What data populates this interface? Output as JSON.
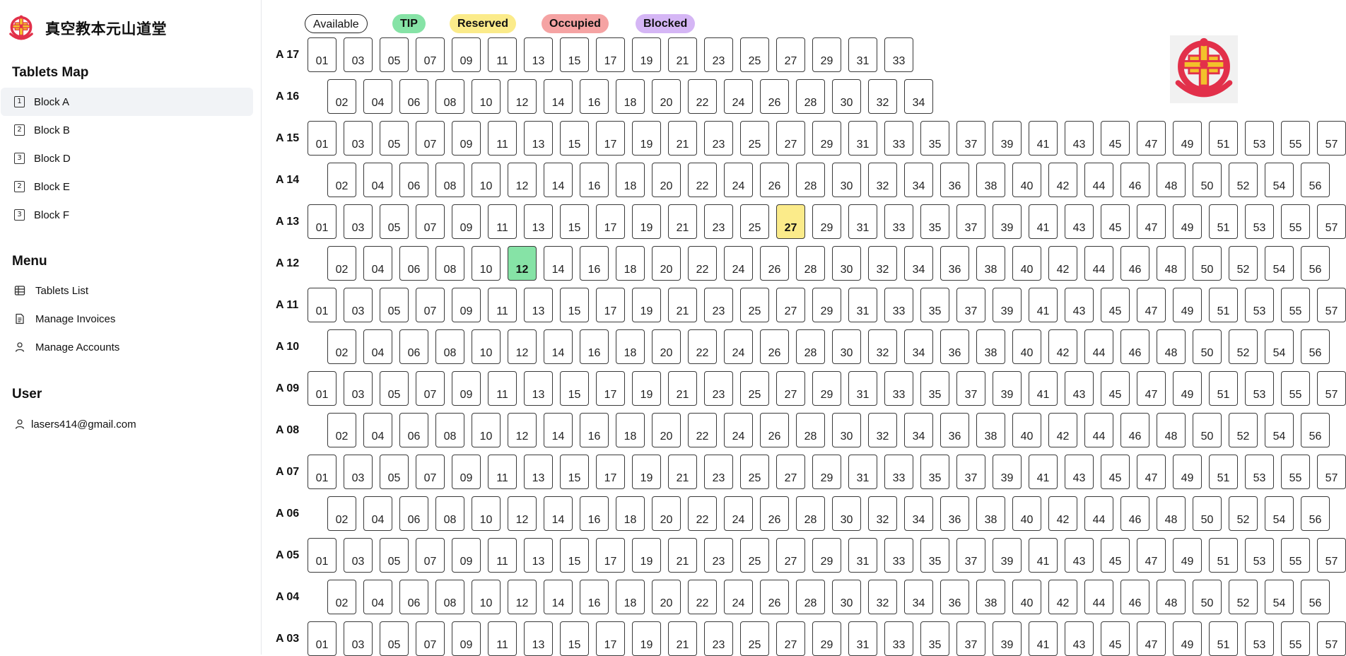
{
  "brand": {
    "name": "真空教本元山道堂"
  },
  "sidebar": {
    "tablets_map_title": "Tablets Map",
    "blocks": [
      {
        "icon_num": "1",
        "label": "Block A",
        "active": true
      },
      {
        "icon_num": "2",
        "label": "Block B",
        "active": false
      },
      {
        "icon_num": "3",
        "label": "Block D",
        "active": false
      },
      {
        "icon_num": "2",
        "label": "Block E",
        "active": false
      },
      {
        "icon_num": "3",
        "label": "Block F",
        "active": false
      }
    ],
    "menu_title": "Menu",
    "menu": [
      {
        "icon": "table-icon",
        "label": "Tablets List"
      },
      {
        "icon": "document-icon",
        "label": "Manage Invoices"
      },
      {
        "icon": "user-icon",
        "label": "Manage Accounts"
      }
    ],
    "user_title": "User",
    "user_email": "lasers414@gmail.com",
    "user_icon": "user-icon"
  },
  "legend": [
    {
      "key": "available",
      "label": "Available"
    },
    {
      "key": "tip",
      "label": "TIP"
    },
    {
      "key": "reserved",
      "label": "Reserved"
    },
    {
      "key": "occupied",
      "label": "Occupied"
    },
    {
      "key": "blocked",
      "label": "Blocked"
    }
  ],
  "status_colors": {
    "available": "#ffffff",
    "tip": "#86e3a6",
    "reserved": "#fbeb8a",
    "occupied": "#f5a3a3",
    "blocked": "#d5b6f5",
    "logo_red": "#e2304a",
    "logo_gold": "#f3c12b"
  },
  "rows": [
    {
      "label": "A 17",
      "parity": "odd",
      "cells": [
        "01",
        "03",
        "05",
        "07",
        "09",
        "11",
        "13",
        "15",
        "17",
        "19",
        "21",
        "23",
        "25",
        "27",
        "29",
        "31",
        "33"
      ]
    },
    {
      "label": "A 16",
      "parity": "even",
      "cells": [
        "02",
        "04",
        "06",
        "08",
        "10",
        "12",
        "14",
        "16",
        "18",
        "20",
        "22",
        "24",
        "26",
        "28",
        "30",
        "32",
        "34"
      ]
    },
    {
      "label": "A 15",
      "parity": "odd",
      "cells": [
        "01",
        "03",
        "05",
        "07",
        "09",
        "11",
        "13",
        "15",
        "17",
        "19",
        "21",
        "23",
        "25",
        "27",
        "29",
        "31",
        "33",
        "35",
        "37",
        "39",
        "41",
        "43",
        "45",
        "47",
        "49",
        "51",
        "53",
        "55",
        "57"
      ]
    },
    {
      "label": "A 14",
      "parity": "even",
      "cells": [
        "02",
        "04",
        "06",
        "08",
        "10",
        "12",
        "14",
        "16",
        "18",
        "20",
        "22",
        "24",
        "26",
        "28",
        "30",
        "32",
        "34",
        "36",
        "38",
        "40",
        "42",
        "44",
        "46",
        "48",
        "50",
        "52",
        "54",
        "56"
      ]
    },
    {
      "label": "A 13",
      "parity": "odd",
      "cells": [
        "01",
        "03",
        "05",
        "07",
        "09",
        "11",
        "13",
        "15",
        "17",
        "19",
        "21",
        "23",
        "25",
        "27",
        "29",
        "31",
        "33",
        "35",
        "37",
        "39",
        "41",
        "43",
        "45",
        "47",
        "49",
        "51",
        "53",
        "55",
        "57"
      ],
      "status": {
        "27": "reserved"
      }
    },
    {
      "label": "A 12",
      "parity": "even",
      "cells": [
        "02",
        "04",
        "06",
        "08",
        "10",
        "12",
        "14",
        "16",
        "18",
        "20",
        "22",
        "24",
        "26",
        "28",
        "30",
        "32",
        "34",
        "36",
        "38",
        "40",
        "42",
        "44",
        "46",
        "48",
        "50",
        "52",
        "54",
        "56"
      ],
      "status": {
        "12": "tip"
      }
    },
    {
      "label": "A 11",
      "parity": "odd",
      "cells": [
        "01",
        "03",
        "05",
        "07",
        "09",
        "11",
        "13",
        "15",
        "17",
        "19",
        "21",
        "23",
        "25",
        "27",
        "29",
        "31",
        "33",
        "35",
        "37",
        "39",
        "41",
        "43",
        "45",
        "47",
        "49",
        "51",
        "53",
        "55",
        "57"
      ]
    },
    {
      "label": "A 10",
      "parity": "even",
      "cells": [
        "02",
        "04",
        "06",
        "08",
        "10",
        "12",
        "14",
        "16",
        "18",
        "20",
        "22",
        "24",
        "26",
        "28",
        "30",
        "32",
        "34",
        "36",
        "38",
        "40",
        "42",
        "44",
        "46",
        "48",
        "50",
        "52",
        "54",
        "56"
      ]
    },
    {
      "label": "A 09",
      "parity": "odd",
      "cells": [
        "01",
        "03",
        "05",
        "07",
        "09",
        "11",
        "13",
        "15",
        "17",
        "19",
        "21",
        "23",
        "25",
        "27",
        "29",
        "31",
        "33",
        "35",
        "37",
        "39",
        "41",
        "43",
        "45",
        "47",
        "49",
        "51",
        "53",
        "55",
        "57"
      ]
    },
    {
      "label": "A 08",
      "parity": "even",
      "cells": [
        "02",
        "04",
        "06",
        "08",
        "10",
        "12",
        "14",
        "16",
        "18",
        "20",
        "22",
        "24",
        "26",
        "28",
        "30",
        "32",
        "34",
        "36",
        "38",
        "40",
        "42",
        "44",
        "46",
        "48",
        "50",
        "52",
        "54",
        "56"
      ]
    },
    {
      "label": "A 07",
      "parity": "odd",
      "cells": [
        "01",
        "03",
        "05",
        "07",
        "09",
        "11",
        "13",
        "15",
        "17",
        "19",
        "21",
        "23",
        "25",
        "27",
        "29",
        "31",
        "33",
        "35",
        "37",
        "39",
        "41",
        "43",
        "45",
        "47",
        "49",
        "51",
        "53",
        "55",
        "57"
      ]
    },
    {
      "label": "A 06",
      "parity": "even",
      "cells": [
        "02",
        "04",
        "06",
        "08",
        "10",
        "12",
        "14",
        "16",
        "18",
        "20",
        "22",
        "24",
        "26",
        "28",
        "30",
        "32",
        "34",
        "36",
        "38",
        "40",
        "42",
        "44",
        "46",
        "48",
        "50",
        "52",
        "54",
        "56"
      ]
    },
    {
      "label": "A 05",
      "parity": "odd",
      "cells": [
        "01",
        "03",
        "05",
        "07",
        "09",
        "11",
        "13",
        "15",
        "17",
        "19",
        "21",
        "23",
        "25",
        "27",
        "29",
        "31",
        "33",
        "35",
        "37",
        "39",
        "41",
        "43",
        "45",
        "47",
        "49",
        "51",
        "53",
        "55",
        "57"
      ]
    },
    {
      "label": "A 04",
      "parity": "even",
      "cells": [
        "02",
        "04",
        "06",
        "08",
        "10",
        "12",
        "14",
        "16",
        "18",
        "20",
        "22",
        "24",
        "26",
        "28",
        "30",
        "32",
        "34",
        "36",
        "38",
        "40",
        "42",
        "44",
        "46",
        "48",
        "50",
        "52",
        "54",
        "56"
      ]
    },
    {
      "label": "A 03",
      "parity": "odd",
      "cells": [
        "01",
        "03",
        "05",
        "07",
        "09",
        "11",
        "13",
        "15",
        "17",
        "19",
        "21",
        "23",
        "25",
        "27",
        "29",
        "31",
        "33",
        "35",
        "37",
        "39",
        "41",
        "43",
        "45",
        "47",
        "49",
        "51",
        "53",
        "55",
        "57"
      ]
    }
  ]
}
